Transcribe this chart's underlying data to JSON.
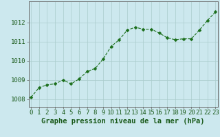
{
  "x": [
    0,
    1,
    2,
    3,
    4,
    5,
    6,
    7,
    8,
    9,
    10,
    11,
    12,
    13,
    14,
    15,
    16,
    17,
    18,
    19,
    20,
    21,
    22,
    23
  ],
  "y": [
    1008.1,
    1008.6,
    1008.75,
    1008.8,
    1009.0,
    1008.8,
    1009.05,
    1009.45,
    1009.6,
    1010.1,
    1010.75,
    1011.1,
    1011.6,
    1011.75,
    1011.65,
    1011.65,
    1011.45,
    1011.2,
    1011.1,
    1011.15,
    1011.15,
    1011.6,
    1012.1,
    1012.55
  ],
  "line_color": "#1a6e1a",
  "marker": "D",
  "marker_size": 2.5,
  "bg_color": "#cce8ee",
  "grid_color": "#aacccc",
  "xlabel": "Graphe pression niveau de la mer (hPa)",
  "xlabel_color": "#1a5a1a",
  "xlabel_fontsize": 7.5,
  "yticks": [
    1008,
    1009,
    1010,
    1011,
    1012
  ],
  "xticks": [
    0,
    1,
    2,
    3,
    4,
    5,
    6,
    7,
    8,
    9,
    10,
    11,
    12,
    13,
    14,
    15,
    16,
    17,
    18,
    19,
    20,
    21,
    22,
    23
  ],
  "ylim": [
    1007.6,
    1013.1
  ],
  "xlim": [
    -0.3,
    23.3
  ],
  "tick_color": "#1a5a1a",
  "tick_fontsize": 6.5,
  "spine_color": "#666666"
}
